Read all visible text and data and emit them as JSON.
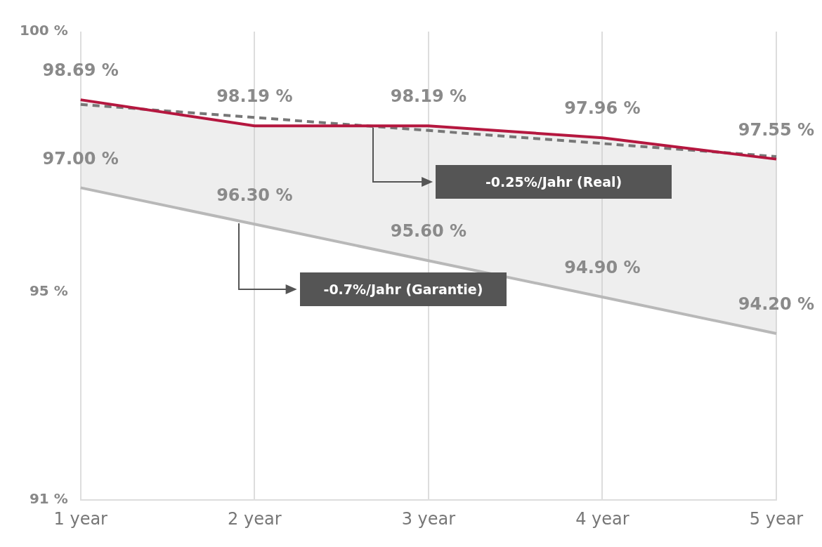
{
  "chart_data": {
    "type": "line",
    "categories": [
      "1 year",
      "2 year",
      "3 year",
      "4 year",
      "5 year"
    ],
    "series": [
      {
        "color": "#b5173f",
        "values": [
          98.69,
          98.19,
          98.19,
          97.96,
          97.55
        ],
        "value_labels": [
          "98.69 %",
          "98.19 %",
          "98.19 %",
          "97.96 %",
          "97.55 %"
        ],
        "lower": [
          97.0,
          96.3,
          95.6,
          94.9,
          94.2
        ],
        "upper": [
          98.69,
          98.19,
          98.19,
          97.96,
          97.55
        ]
      },
      {
        "color": "#777777",
        "line_style": "dashed",
        "values": [
          98.6,
          98.35,
          98.1,
          97.85,
          97.6
        ]
      },
      {
        "color": "#b8b8b8",
        "values": [
          97.0,
          96.3,
          95.6,
          94.9,
          94.2
        ],
        "value_labels": [
          "97.00 %",
          "96.30 %",
          "95.60 %",
          "94.90 %",
          "94.20 %"
        ]
      }
    ],
    "ylim": [
      91,
      100
    ],
    "yticks": [
      {
        "value": 91,
        "label": "91 %"
      },
      {
        "value": 95,
        "label": "95 %"
      },
      {
        "value": 100,
        "label": "100 %"
      }
    ],
    "grid": "x",
    "legend": false,
    "marker": "none",
    "line_style": "solid",
    "annotations": [
      "-0.25%/Jahr (Real)",
      "-0.7%/Jahr (Garantie)"
    ]
  }
}
